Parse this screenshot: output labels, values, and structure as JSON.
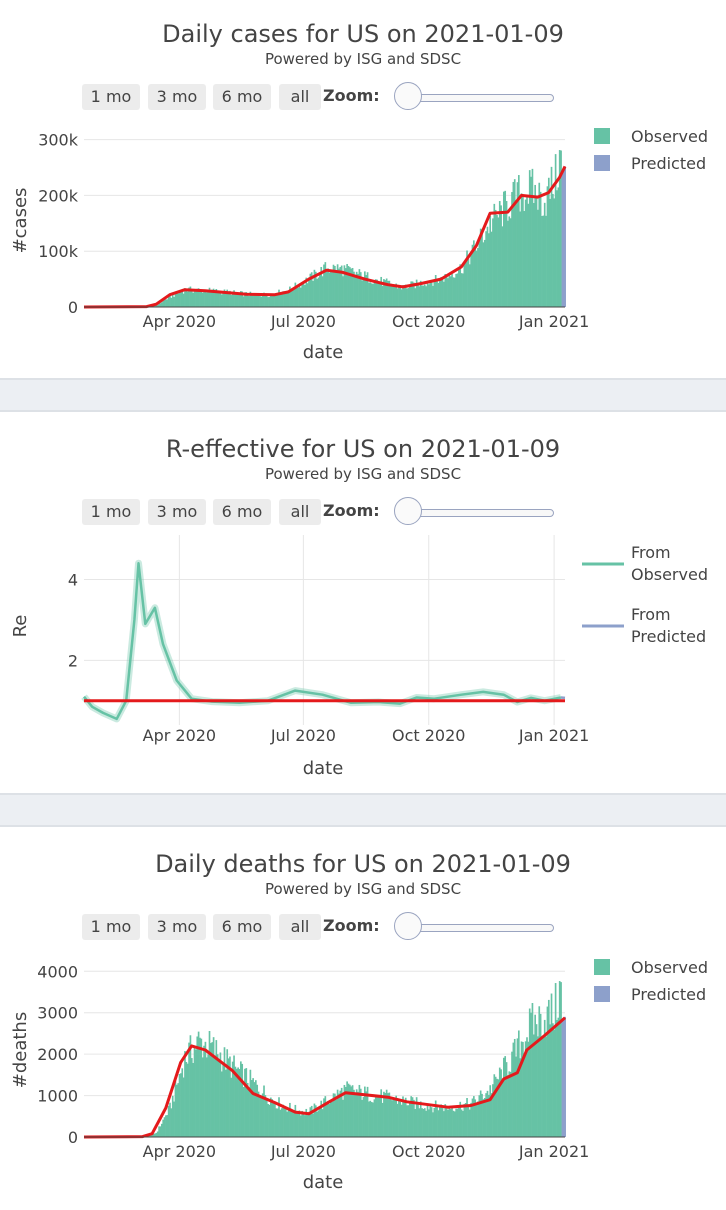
{
  "range_buttons": [
    "1 mo",
    "3 mo",
    "6 mo",
    "all"
  ],
  "zoom_label": "Zoom:",
  "colors": {
    "observed": "#66c2a5",
    "predicted": "#8da0cb",
    "trend": "#e41a1c",
    "separator": "#eceff3"
  },
  "panels": [
    {
      "title": "Daily cases for US on 2021-01-09",
      "subtitle": "Powered by ISG and SDSC",
      "chart_data": {
        "type": "bar",
        "title": "Daily cases for US on 2021-01-09",
        "xlabel": "date",
        "ylabel": "#cases",
        "x_ticks": [
          "Apr 2020",
          "Jul 2020",
          "Oct 2020",
          "Jan 2021"
        ],
        "y_ticks": [
          {
            "value": 0,
            "label": "0"
          },
          {
            "value": 100000,
            "label": "100k"
          },
          {
            "value": 200000,
            "label": "200k"
          },
          {
            "value": 300000,
            "label": "300k"
          }
        ],
        "ylim": [
          0,
          310000
        ],
        "legend": [
          "Observed",
          "Predicted"
        ],
        "legend_position": "right",
        "observed_series": [
          [
            "2020-01-22",
            0
          ],
          [
            "2020-02-15",
            200
          ],
          [
            "2020-03-05",
            800
          ],
          [
            "2020-03-15",
            3000
          ],
          [
            "2020-03-25",
            18000
          ],
          [
            "2020-04-05",
            31000
          ],
          [
            "2020-04-20",
            30000
          ],
          [
            "2020-05-05",
            27000
          ],
          [
            "2020-05-20",
            23000
          ],
          [
            "2020-06-05",
            22000
          ],
          [
            "2020-06-20",
            30000
          ],
          [
            "2020-07-05",
            50000
          ],
          [
            "2020-07-18",
            70000
          ],
          [
            "2020-07-30",
            68000
          ],
          [
            "2020-08-15",
            55000
          ],
          [
            "2020-09-01",
            42000
          ],
          [
            "2020-09-12",
            35000
          ],
          [
            "2020-09-25",
            43000
          ],
          [
            "2020-10-10",
            50000
          ],
          [
            "2020-10-25",
            70000
          ],
          [
            "2020-11-05",
            110000
          ],
          [
            "2020-11-15",
            150000
          ],
          [
            "2020-11-25",
            175000
          ],
          [
            "2020-12-05",
            200000
          ],
          [
            "2020-12-15",
            210000
          ],
          [
            "2020-12-25",
            190000
          ],
          [
            "2021-01-02",
            230000
          ],
          [
            "2021-01-06",
            270000
          ]
        ],
        "predicted_series": [
          [
            "2021-01-06",
            235000
          ],
          [
            "2021-01-09",
            252000
          ]
        ],
        "trend_line": [
          [
            "2020-01-22",
            0
          ],
          [
            "2020-03-08",
            800
          ],
          [
            "2020-03-15",
            5000
          ],
          [
            "2020-03-25",
            22000
          ],
          [
            "2020-04-05",
            31000
          ],
          [
            "2020-04-20",
            29000
          ],
          [
            "2020-05-05",
            26000
          ],
          [
            "2020-05-20",
            23000
          ],
          [
            "2020-06-10",
            22000
          ],
          [
            "2020-06-20",
            27000
          ],
          [
            "2020-07-05",
            50000
          ],
          [
            "2020-07-18",
            66000
          ],
          [
            "2020-07-30",
            62000
          ],
          [
            "2020-08-15",
            50000
          ],
          [
            "2020-09-01",
            40000
          ],
          [
            "2020-09-12",
            36000
          ],
          [
            "2020-09-25",
            42000
          ],
          [
            "2020-10-10",
            50000
          ],
          [
            "2020-10-25",
            72000
          ],
          [
            "2020-11-05",
            110000
          ],
          [
            "2020-11-15",
            168000
          ],
          [
            "2020-11-28",
            170000
          ],
          [
            "2020-12-08",
            200000
          ],
          [
            "2020-12-20",
            197000
          ],
          [
            "2020-12-28",
            205000
          ],
          [
            "2021-01-05",
            232000
          ],
          [
            "2021-01-09",
            252000
          ]
        ]
      }
    },
    {
      "title": "R-effective for US on 2021-01-09",
      "subtitle": "Powered by ISG and SDSC",
      "chart_data": {
        "type": "line",
        "title": "R-effective for US on 2021-01-09",
        "xlabel": "date",
        "ylabel": "Re",
        "x_ticks": [
          "Apr 2020",
          "Jul 2020",
          "Oct 2020",
          "Jan 2021"
        ],
        "y_ticks": [
          {
            "value": 2,
            "label": "2"
          },
          {
            "value": 4,
            "label": "4"
          }
        ],
        "ylim": [
          0.4,
          5.1
        ],
        "legend": [
          "From Observed",
          "From Predicted"
        ],
        "legend_position": "right",
        "grid": true,
        "reference_line": 1,
        "observed_series": [
          [
            "2020-01-22",
            1.1
          ],
          [
            "2020-01-28",
            0.85
          ],
          [
            "2020-02-05",
            0.7
          ],
          [
            "2020-02-15",
            0.55
          ],
          [
            "2020-02-22",
            1.0
          ],
          [
            "2020-02-28",
            3.0
          ],
          [
            "2020-03-02",
            4.4
          ],
          [
            "2020-03-07",
            2.9
          ],
          [
            "2020-03-14",
            3.3
          ],
          [
            "2020-03-20",
            2.4
          ],
          [
            "2020-03-30",
            1.5
          ],
          [
            "2020-04-10",
            1.05
          ],
          [
            "2020-04-25",
            0.98
          ],
          [
            "2020-05-15",
            0.95
          ],
          [
            "2020-06-05",
            1.0
          ],
          [
            "2020-06-25",
            1.25
          ],
          [
            "2020-07-15",
            1.15
          ],
          [
            "2020-08-05",
            0.95
          ],
          [
            "2020-08-25",
            0.97
          ],
          [
            "2020-09-10",
            0.93
          ],
          [
            "2020-09-22",
            1.08
          ],
          [
            "2020-10-05",
            1.05
          ],
          [
            "2020-10-25",
            1.15
          ],
          [
            "2020-11-10",
            1.22
          ],
          [
            "2020-11-25",
            1.15
          ],
          [
            "2020-12-05",
            0.97
          ],
          [
            "2020-12-15",
            1.07
          ],
          [
            "2020-12-25",
            1.0
          ],
          [
            "2021-01-06",
            1.08
          ]
        ],
        "predicted_series": [
          [
            "2021-01-06",
            1.08
          ],
          [
            "2021-01-09",
            1.07
          ]
        ]
      }
    },
    {
      "title": "Daily deaths for US on 2021-01-09",
      "subtitle": "Powered by ISG and SDSC",
      "chart_data": {
        "type": "bar",
        "title": "Daily deaths for US on 2021-01-09",
        "xlabel": "date",
        "ylabel": "#deaths",
        "x_ticks": [
          "Apr 2020",
          "Jul 2020",
          "Oct 2020",
          "Jan 2021"
        ],
        "y_ticks": [
          {
            "value": 0,
            "label": "0"
          },
          {
            "value": 1000,
            "label": "1000"
          },
          {
            "value": 2000,
            "label": "2000"
          },
          {
            "value": 3000,
            "label": "3000"
          },
          {
            "value": 4000,
            "label": "4000"
          }
        ],
        "ylim": [
          0,
          4200
        ],
        "legend": [
          "Observed",
          "Predicted"
        ],
        "legend_position": "right",
        "observed_series": [
          [
            "2020-01-22",
            0
          ],
          [
            "2020-03-05",
            5
          ],
          [
            "2020-03-15",
            100
          ],
          [
            "2020-03-25",
            700
          ],
          [
            "2020-04-05",
            1900
          ],
          [
            "2020-04-15",
            2300
          ],
          [
            "2020-04-25",
            2150
          ],
          [
            "2020-05-10",
            1700
          ],
          [
            "2020-05-25",
            1300
          ],
          [
            "2020-06-10",
            850
          ],
          [
            "2020-06-25",
            650
          ],
          [
            "2020-07-05",
            600
          ],
          [
            "2020-07-20",
            900
          ],
          [
            "2020-08-01",
            1150
          ],
          [
            "2020-08-15",
            1050
          ],
          [
            "2020-09-01",
            950
          ],
          [
            "2020-09-15",
            850
          ],
          [
            "2020-10-01",
            750
          ],
          [
            "2020-10-15",
            720
          ],
          [
            "2020-11-01",
            800
          ],
          [
            "2020-11-15",
            1150
          ],
          [
            "2020-12-01",
            1900
          ],
          [
            "2020-12-15",
            2700
          ],
          [
            "2021-01-01",
            3000
          ],
          [
            "2021-01-06",
            3600
          ]
        ],
        "predicted_series": [
          [
            "2021-01-06",
            2800
          ],
          [
            "2021-01-09",
            2900
          ]
        ],
        "trend_line": [
          [
            "2020-01-22",
            0
          ],
          [
            "2020-03-05",
            10
          ],
          [
            "2020-03-12",
            80
          ],
          [
            "2020-03-22",
            700
          ],
          [
            "2020-04-02",
            1800
          ],
          [
            "2020-04-10",
            2200
          ],
          [
            "2020-04-20",
            2100
          ],
          [
            "2020-05-10",
            1600
          ],
          [
            "2020-05-25",
            1050
          ],
          [
            "2020-06-10",
            830
          ],
          [
            "2020-06-25",
            600
          ],
          [
            "2020-07-05",
            560
          ],
          [
            "2020-07-20",
            850
          ],
          [
            "2020-08-01",
            1070
          ],
          [
            "2020-08-15",
            1020
          ],
          [
            "2020-09-01",
            960
          ],
          [
            "2020-09-15",
            850
          ],
          [
            "2020-10-01",
            780
          ],
          [
            "2020-10-15",
            720
          ],
          [
            "2020-11-01",
            760
          ],
          [
            "2020-11-15",
            900
          ],
          [
            "2020-11-25",
            1400
          ],
          [
            "2020-12-05",
            1550
          ],
          [
            "2020-12-12",
            2100
          ],
          [
            "2020-12-25",
            2450
          ],
          [
            "2021-01-09",
            2880
          ]
        ]
      }
    }
  ]
}
